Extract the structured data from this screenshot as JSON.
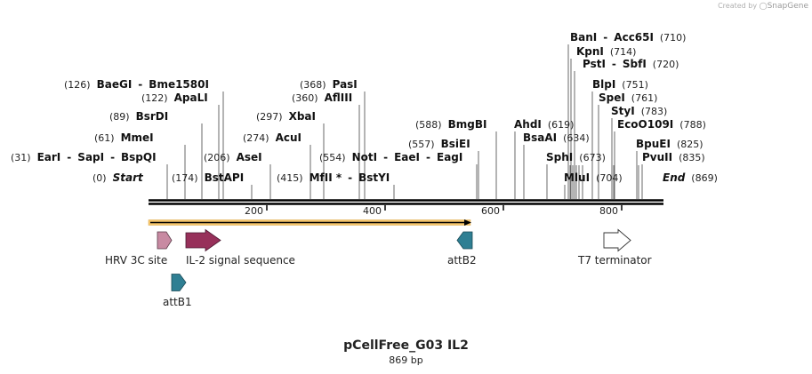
{
  "credit": {
    "prefix": "Created by",
    "brand": "SnapGene"
  },
  "map": {
    "title": "pCellFree_G03 IL2",
    "length_label": "869 bp",
    "length_bp": 869,
    "axis_ticks": [
      "200",
      "400",
      "600",
      "800"
    ],
    "colors": {
      "hrv": "#c88aa2",
      "il2": "#97305a",
      "att": "#2f7f93",
      "t7": "#ffffff",
      "orf_fill": "#f7c66b",
      "line": "#000000"
    }
  },
  "sites": [
    {
      "pos": "(0)",
      "names": [
        "Start"
      ],
      "italic": true
    },
    {
      "pos": "(31)",
      "names": [
        "EarI",
        "SapI",
        "BspQI"
      ]
    },
    {
      "pos": "(61)",
      "names": [
        "MmeI"
      ]
    },
    {
      "pos": "(89)",
      "names": [
        "BsrDI"
      ]
    },
    {
      "pos": "(122)",
      "names": [
        "ApaLI"
      ]
    },
    {
      "pos": "(126)",
      "names": [
        "BaeGI",
        "Bme1580I"
      ]
    },
    {
      "pos": "(174)",
      "names": [
        "BstAPI"
      ]
    },
    {
      "pos": "(206)",
      "names": [
        "AseI"
      ]
    },
    {
      "pos": "(274)",
      "names": [
        "AcuI"
      ]
    },
    {
      "pos": "(297)",
      "names": [
        "XbaI"
      ]
    },
    {
      "pos": "(360)",
      "names": [
        "AflIII"
      ]
    },
    {
      "pos": "(368)",
      "names": [
        "PasI"
      ]
    },
    {
      "pos": "(415)",
      "names": [
        "MfII *",
        "BstYI"
      ]
    },
    {
      "pos": "(554)",
      "names": [
        "NotI",
        "EaeI",
        "EagI"
      ]
    },
    {
      "pos": "(557)",
      "names": [
        "BsiEI"
      ]
    },
    {
      "pos": "(588)",
      "names": [
        "BmgBI"
      ]
    },
    {
      "pos": "(619)",
      "names": [
        "AhdI"
      ]
    },
    {
      "pos": "(634)",
      "names": [
        "BsaAI"
      ]
    },
    {
      "pos": "(673)",
      "names": [
        "SphI"
      ]
    },
    {
      "pos": "(704)",
      "names": [
        "MluI"
      ]
    },
    {
      "pos": "(710)",
      "names": [
        "BanI",
        "Acc65I"
      ]
    },
    {
      "pos": "(714)",
      "names": [
        "KpnI"
      ]
    },
    {
      "pos": "(720)",
      "names": [
        "PstI",
        "SbfI"
      ]
    },
    {
      "pos": "(751)",
      "names": [
        "BlpI"
      ]
    },
    {
      "pos": "(761)",
      "names": [
        "SpeI"
      ]
    },
    {
      "pos": "(783)",
      "names": [
        "StyI"
      ]
    },
    {
      "pos": "(788)",
      "names": [
        "EcoO109I"
      ]
    },
    {
      "pos": "(825)",
      "names": [
        "BpuEI"
      ]
    },
    {
      "pos": "(835)",
      "names": [
        "PvuII"
      ]
    },
    {
      "pos": "(869)",
      "names": [
        "End"
      ],
      "italic": true
    }
  ],
  "features": [
    {
      "name": "HRV 3C site",
      "color": "#c88aa2"
    },
    {
      "name": "IL-2 signal sequence",
      "color": "#97305a"
    },
    {
      "name": "attB2",
      "color": "#2f7f93"
    },
    {
      "name": "T7 terminator",
      "color": "#ffffff"
    },
    {
      "name": "attB1",
      "color": "#2f7f93"
    }
  ]
}
